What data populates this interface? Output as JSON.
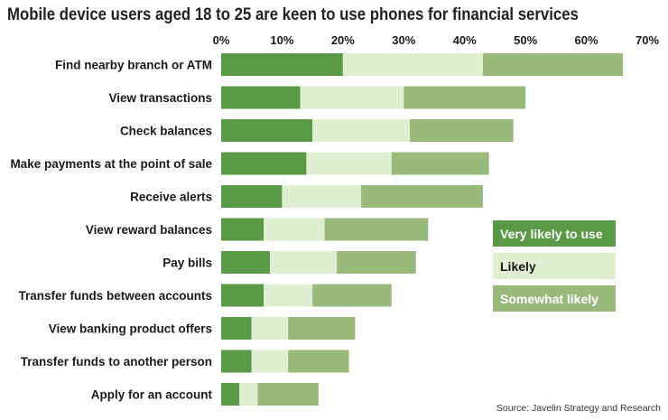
{
  "title": "Mobile device users aged 18 to 25 are keen to use phones for financial services",
  "source": "Source: Javelin Strategy and Research",
  "legend": [
    {
      "label": "Very likely to use",
      "color": "#5a9a47",
      "text_color": "#ffffff"
    },
    {
      "label": "Likely",
      "color": "#e0efd2",
      "text_color": "#1a1a1a"
    },
    {
      "label": "Somewhat likely",
      "color": "#9aba7c",
      "text_color": "#ffffff"
    }
  ],
  "chart_data": {
    "type": "bar",
    "orientation": "horizontal",
    "stacked": true,
    "title": "Mobile device users aged 18 to 25 are keen to use phones for financial services",
    "xlim": [
      0,
      70
    ],
    "x_ticks": [
      "0%",
      "10%",
      "20%",
      "30%",
      "40%",
      "50%",
      "60%",
      "70%"
    ],
    "x_axis_position": "top",
    "categories": [
      "Find nearby branch or ATM",
      "View transactions",
      "Check balances",
      "Make payments at the point of sale",
      "Receive alerts",
      "View reward balances",
      "Pay bills",
      "Transfer funds between accounts",
      "View banking product offers",
      "Transfer funds to another person",
      "Apply for an account"
    ],
    "series": [
      {
        "name": "Very likely to use",
        "color": "#5a9a47",
        "values": [
          20,
          13,
          15,
          14,
          10,
          7,
          8,
          7,
          5,
          5,
          3
        ]
      },
      {
        "name": "Likely",
        "color": "#e0efd2",
        "values": [
          23,
          17,
          16,
          14,
          13,
          10,
          11,
          8,
          6,
          6,
          3
        ]
      },
      {
        "name": "Somewhat likely",
        "color": "#9aba7c",
        "values": [
          23,
          20,
          17,
          16,
          20,
          17,
          13,
          13,
          11,
          10,
          10
        ]
      }
    ],
    "grid": false,
    "legend_position": "center-right"
  }
}
